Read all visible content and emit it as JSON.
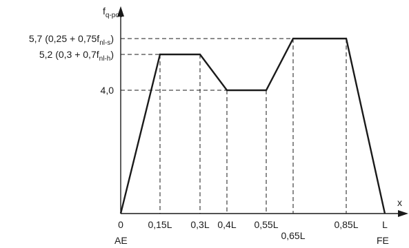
{
  "chart_data": {
    "type": "line",
    "axes": {
      "x_label": "x",
      "y_label_main": "f",
      "y_label_sub": "q-pos"
    },
    "x_tick_labels": [
      "0",
      "0,15L",
      "0,3L",
      "0,4L",
      "0,55L",
      "0,65L",
      "0,85L",
      "L"
    ],
    "x_ticks": [
      0,
      0.15,
      0.3,
      0.4,
      0.55,
      0.65,
      0.85,
      1.0
    ],
    "x_end_labels": {
      "start": "AE",
      "end": "FE"
    },
    "y_tick_labels": [
      {
        "value": 5.7,
        "main": "5,7 (0,25 + 0,75f",
        "sub": "nl-s",
        "close": ")"
      },
      {
        "value": 5.2,
        "main": "5,2 (0,3 + 0,7f",
        "sub": "nl-h",
        "close": ")"
      },
      {
        "value": 4.0,
        "main": "4,0",
        "sub": "",
        "close": ""
      }
    ],
    "xlim": [
      0,
      1.0
    ],
    "ylim": [
      0,
      6.4
    ],
    "series": [
      {
        "x": [
          0,
          0.15,
          0.3,
          0.4,
          0.55,
          0.65,
          0.85,
          1.0
        ],
        "y": [
          0,
          5.2,
          5.2,
          4.0,
          4.0,
          5.7,
          5.7,
          0
        ]
      }
    ],
    "grid": false,
    "legend": "none"
  }
}
